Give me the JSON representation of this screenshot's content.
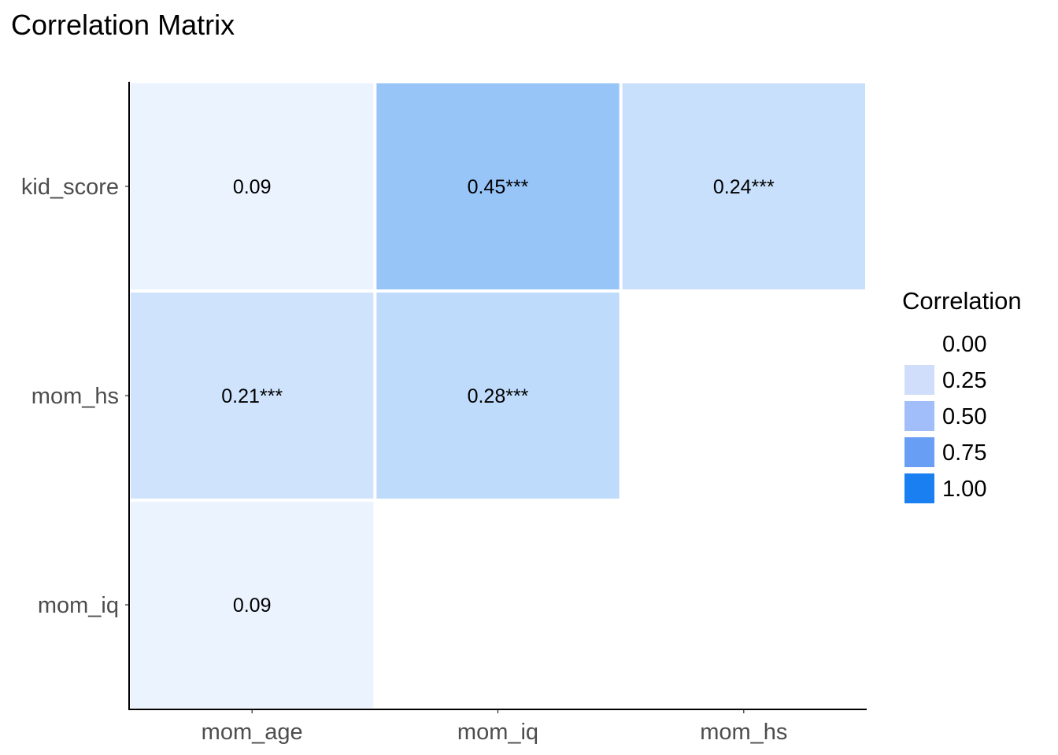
{
  "chart_data": {
    "type": "heatmap",
    "title": "Correlation Matrix",
    "xlabel": "",
    "ylabel": "",
    "x_categories": [
      "mom_age",
      "mom_iq",
      "mom_hs"
    ],
    "y_categories": [
      "kid_score",
      "mom_hs",
      "mom_iq"
    ],
    "cells": [
      {
        "x": "mom_age",
        "y": "kid_score",
        "value": 0.09,
        "label": "0.09"
      },
      {
        "x": "mom_iq",
        "y": "kid_score",
        "value": 0.45,
        "label": "0.45***"
      },
      {
        "x": "mom_hs",
        "y": "kid_score",
        "value": 0.24,
        "label": "0.24***"
      },
      {
        "x": "mom_age",
        "y": "mom_hs",
        "value": 0.21,
        "label": "0.21***"
      },
      {
        "x": "mom_iq",
        "y": "mom_hs",
        "value": 0.28,
        "label": "0.28***"
      },
      {
        "x": "mom_age",
        "y": "mom_iq",
        "value": 0.09,
        "label": "0.09"
      }
    ],
    "legend": {
      "title": "Correlation",
      "position": "right",
      "entries": [
        {
          "label": "0.00",
          "color": "#ffffff"
        },
        {
          "label": "0.25",
          "color": "#d0defc"
        },
        {
          "label": "0.50",
          "color": "#a1befa"
        },
        {
          "label": "0.75",
          "color": "#689ef4"
        },
        {
          "label": "1.00",
          "color": "#1a7ff0"
        }
      ]
    },
    "color_scale": {
      "low": "#ffffff",
      "high": "#1a7ff0",
      "domain": [
        0,
        1
      ]
    },
    "grid": false
  }
}
